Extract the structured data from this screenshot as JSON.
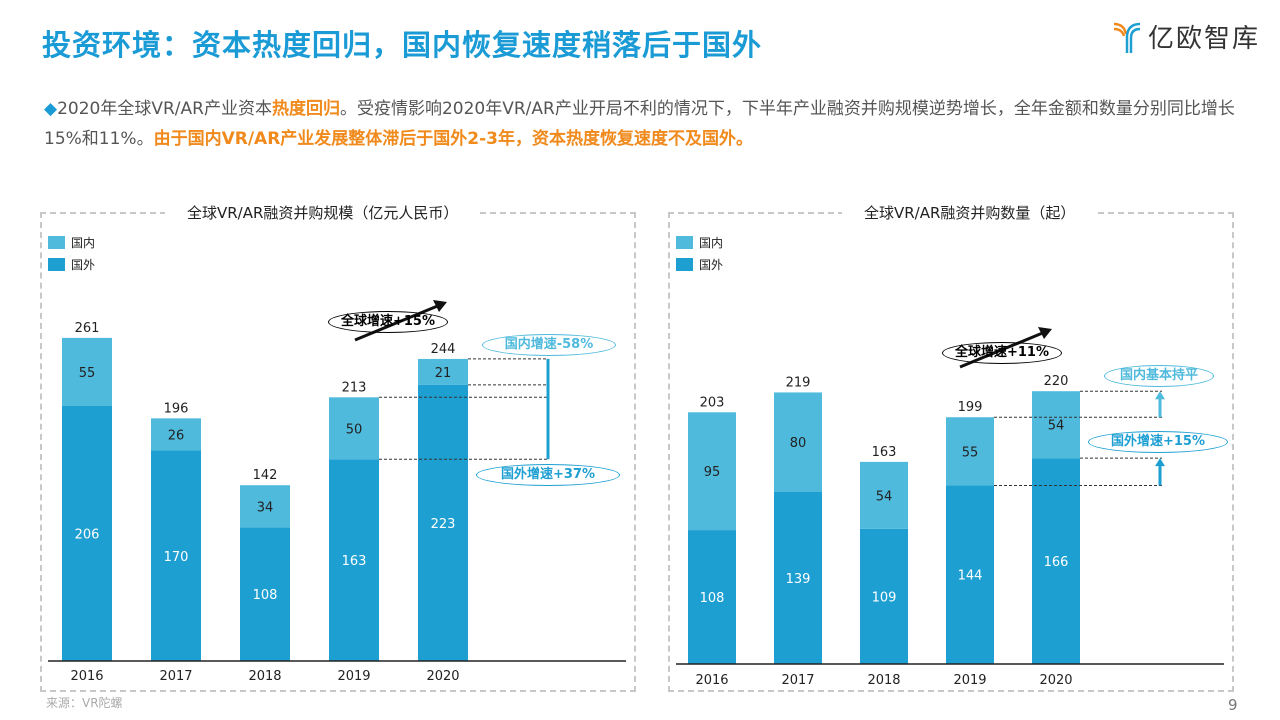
{
  "header": {
    "title": "投资环境：资本热度回归，国内恢复速度稍落后于国外",
    "logo_text": "亿欧智库"
  },
  "paragraph": {
    "bullet": "◆",
    "part1": "2020年全球VR/AR产业资本",
    "highlight1": "热度回归",
    "part2": "。受疫情影响2020年VR/AR产业开局不利的情况下，下半年产业融资并购规模逆势增长，全年金额和数量分别同比增长15%和11%。",
    "highlight2": "由于国内VR/AR产业发展整体滞后于国外2-3年，资本热度恢复速度不及国外。"
  },
  "colors": {
    "domestic": "#4fbadc",
    "foreign": "#1e9fd2",
    "title": "#1b9bd6",
    "highlight": "#f08a1c"
  },
  "chart_data": [
    {
      "type": "bar",
      "stacked": true,
      "title": "全球VR/AR融资并购规模（亿元人民币）",
      "categories": [
        "2016",
        "2017",
        "2018",
        "2019",
        "2020"
      ],
      "series": [
        {
          "name": "国外",
          "values": [
            206,
            170,
            108,
            163,
            223
          ]
        },
        {
          "name": "国内",
          "values": [
            55,
            26,
            34,
            50,
            21
          ]
        }
      ],
      "totals": [
        261,
        196,
        142,
        213,
        244
      ],
      "legend": [
        "国内",
        "国外"
      ],
      "annotations": {
        "global": "全球增速+15%",
        "domestic": "国内增速-58%",
        "foreign": "国外增速+37%"
      }
    },
    {
      "type": "bar",
      "stacked": true,
      "title": "全球VR/AR融资并购数量（起）",
      "categories": [
        "2016",
        "2017",
        "2018",
        "2019",
        "2020"
      ],
      "series": [
        {
          "name": "国外",
          "values": [
            108,
            139,
            109,
            144,
            166
          ]
        },
        {
          "name": "国内",
          "values": [
            95,
            80,
            54,
            55,
            54
          ]
        }
      ],
      "totals": [
        203,
        219,
        163,
        199,
        220
      ],
      "legend": [
        "国内",
        "国外"
      ],
      "annotations": {
        "global": "全球增速+11%",
        "domestic": "国内基本持平",
        "foreign": "国外增速+15%"
      }
    }
  ],
  "footer": {
    "source": "来源：VR陀螺",
    "page": "9"
  }
}
